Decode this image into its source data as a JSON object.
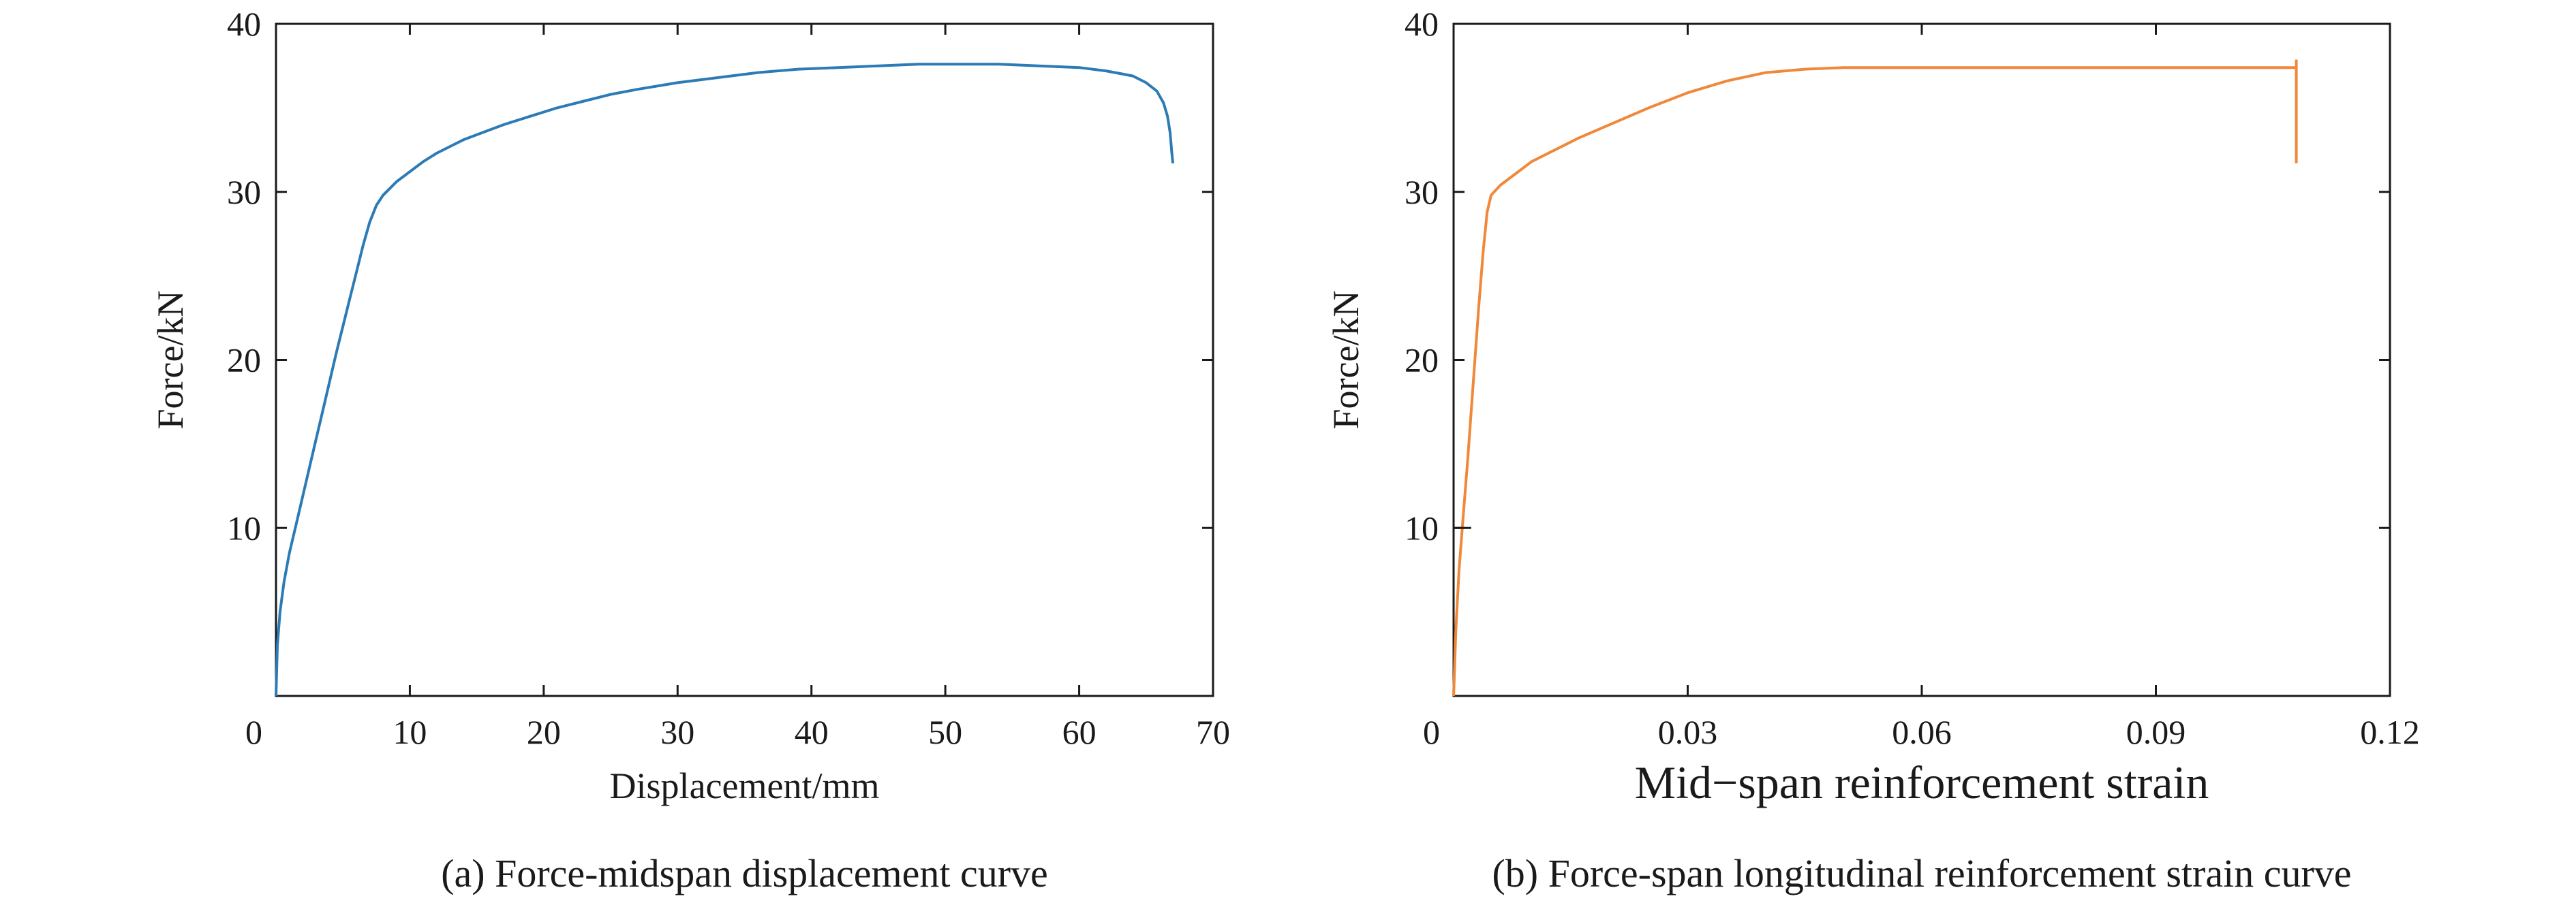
{
  "chart_data": [
    {
      "type": "line",
      "caption": "(a) Force-midspan displacement curve",
      "xlabel": "Displacement/mm",
      "ylabel": "Force/kN",
      "xlim": [
        0,
        70
      ],
      "ylim": [
        0,
        40
      ],
      "x_ticks": [
        "0",
        "10",
        "20",
        "30",
        "40",
        "50",
        "60",
        "70"
      ],
      "x_tick_values": [
        0,
        10,
        20,
        30,
        40,
        50,
        60,
        70
      ],
      "y_ticks": [
        "10",
        "20",
        "30",
        "40"
      ],
      "y_tick_values": [
        10,
        20,
        30,
        40
      ],
      "grid": false,
      "series": [
        {
          "color": "#2c7bb6",
          "x": [
            0,
            0.1,
            0.3,
            0.6,
            1.0,
            1.5,
            2,
            2.5,
            3,
            3.5,
            4,
            4.5,
            5,
            5.5,
            6,
            6.5,
            7,
            7.5,
            8,
            8.5,
            9,
            10,
            11,
            12,
            13,
            14,
            15,
            17,
            19,
            21,
            23,
            25,
            27,
            30,
            33,
            36,
            39,
            42,
            45,
            48,
            51,
            54,
            57,
            60,
            62,
            64,
            65,
            65.8,
            66.3,
            66.6,
            66.8,
            66.9,
            67.0
          ],
          "y": [
            0,
            3.0,
            5.0,
            6.8,
            8.5,
            10.2,
            11.9,
            13.6,
            15.3,
            17.0,
            18.7,
            20.4,
            22.0,
            23.6,
            25.2,
            26.8,
            28.2,
            29.2,
            29.8,
            30.2,
            30.6,
            31.2,
            31.8,
            32.3,
            32.7,
            33.1,
            33.4,
            34.0,
            34.5,
            35.0,
            35.4,
            35.8,
            36.1,
            36.5,
            36.8,
            37.1,
            37.3,
            37.4,
            37.5,
            37.6,
            37.6,
            37.6,
            37.5,
            37.4,
            37.2,
            36.9,
            36.5,
            36.0,
            35.3,
            34.5,
            33.5,
            32.5,
            31.7
          ]
        }
      ]
    },
    {
      "type": "line",
      "caption": "(b) Force-span longitudinal reinforcement strain curve",
      "xlabel": "Mid−span reinforcement strain",
      "ylabel": "Force/kN",
      "xlim": [
        0,
        0.12
      ],
      "ylim": [
        0,
        40
      ],
      "x_ticks": [
        "0",
        "0.03",
        "0.06",
        "0.09",
        "0.12"
      ],
      "x_tick_values": [
        0,
        0.03,
        0.06,
        0.09,
        0.12
      ],
      "y_ticks": [
        "10",
        "20",
        "30",
        "40"
      ],
      "y_tick_values": [
        10,
        20,
        30,
        40
      ],
      "grid": false,
      "series": [
        {
          "color": "#f0883a",
          "x": [
            0,
            0.0003,
            0.0007,
            0.0012,
            0.0018,
            0.0025,
            0.0032,
            0.0038,
            0.0043,
            0.0048,
            0.006,
            0.008,
            0.01,
            0.013,
            0.016,
            0.02,
            0.025,
            0.03,
            0.035,
            0.04,
            0.045,
            0.05,
            0.055,
            0.06,
            0.08,
            0.1,
            0.108,
            0.108,
            0.108
          ],
          "y": [
            0,
            4.0,
            7.5,
            10.5,
            14.0,
            18.5,
            23.0,
            26.5,
            28.8,
            29.8,
            30.4,
            31.1,
            31.8,
            32.5,
            33.2,
            34.0,
            35.0,
            35.9,
            36.6,
            37.1,
            37.3,
            37.4,
            37.4,
            37.4,
            37.4,
            37.4,
            37.4,
            37.8,
            31.7
          ]
        }
      ],
      "annotations": [
        {
          "type": "marker",
          "x": 0.0012,
          "y": 10.0
        }
      ]
    }
  ]
}
